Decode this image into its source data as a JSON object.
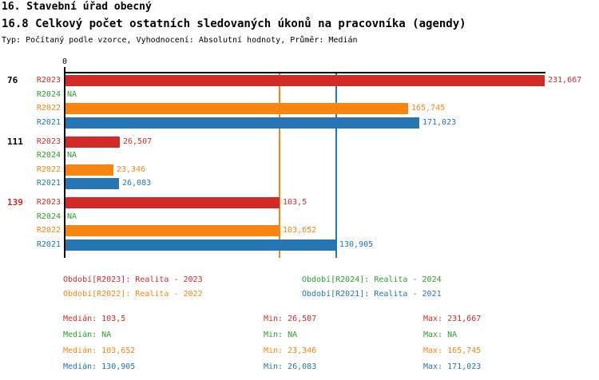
{
  "header": {
    "title": "16. Stavební úřad obecný",
    "subtitle": "16.8 Celkový počet ostatních sledovaných úkonů na pracovníka (agendy)",
    "meta": "Typ: Počítaný podle vzorce, Vyhodnocení: Absolutní hodnoty, Průměr: Medián"
  },
  "colors": {
    "R2023": "#d22b27",
    "R2024": "#2ca02c",
    "R2022": "#f8850f",
    "R2021": "#2576b2",
    "axis": "#000000"
  },
  "chart_data": {
    "type": "bar",
    "orientation": "horizontal",
    "axis_origin_label": "0",
    "xlim": [
      0,
      231.667
    ],
    "grid": false,
    "groups": [
      {
        "label": "76",
        "label_color": "#000000",
        "bars": [
          {
            "series": "R2023",
            "value": 231.667,
            "display": "231,667"
          },
          {
            "series": "R2024",
            "value": null,
            "display": "NA"
          },
          {
            "series": "R2022",
            "value": 165.745,
            "display": "165,745"
          },
          {
            "series": "R2021",
            "value": 171.023,
            "display": "171,023"
          }
        ]
      },
      {
        "label": "111",
        "label_color": "#000000",
        "bars": [
          {
            "series": "R2023",
            "value": 26.507,
            "display": "26,507"
          },
          {
            "series": "R2024",
            "value": null,
            "display": "NA"
          },
          {
            "series": "R2022",
            "value": 23.346,
            "display": "23,346"
          },
          {
            "series": "R2021",
            "value": 26.083,
            "display": "26,083"
          }
        ]
      },
      {
        "label": "139",
        "label_color": "#d22b27",
        "bars": [
          {
            "series": "R2023",
            "value": 103.5,
            "display": "103,5"
          },
          {
            "series": "R2024",
            "value": null,
            "display": "NA"
          },
          {
            "series": "R2022",
            "value": 103.652,
            "display": "103,652"
          },
          {
            "series": "R2021",
            "value": 130.905,
            "display": "130,905"
          }
        ]
      }
    ],
    "median_lines": [
      {
        "series": "R2023",
        "value": 103.5
      },
      {
        "series": "R2022",
        "value": 103.652
      },
      {
        "series": "R2021",
        "value": 130.905
      }
    ]
  },
  "legend": {
    "items": [
      {
        "series": "R2023",
        "label": "Období[R2023]: Realita - 2023"
      },
      {
        "series": "R2024",
        "label": "Období[R2024]: Realita - 2024"
      },
      {
        "series": "R2022",
        "label": "Období[R2022]: Realita - 2022"
      },
      {
        "series": "R2021",
        "label": "Období[R2021]: Realita - 2021"
      }
    ]
  },
  "stats": {
    "rows": [
      {
        "series": "R2023",
        "median": "Medián: 103,5",
        "min": "Min: 26,507",
        "max": "Max: 231,667"
      },
      {
        "series": "R2024",
        "median": "Medián: NA",
        "min": "Min: NA",
        "max": "Max: NA"
      },
      {
        "series": "R2022",
        "median": "Medián: 103,652",
        "min": "Min: 23,346",
        "max": "Max: 165,745"
      },
      {
        "series": "R2021",
        "median": "Medián: 130,905",
        "min": "Min: 26,083",
        "max": "Max: 171,023"
      }
    ]
  }
}
